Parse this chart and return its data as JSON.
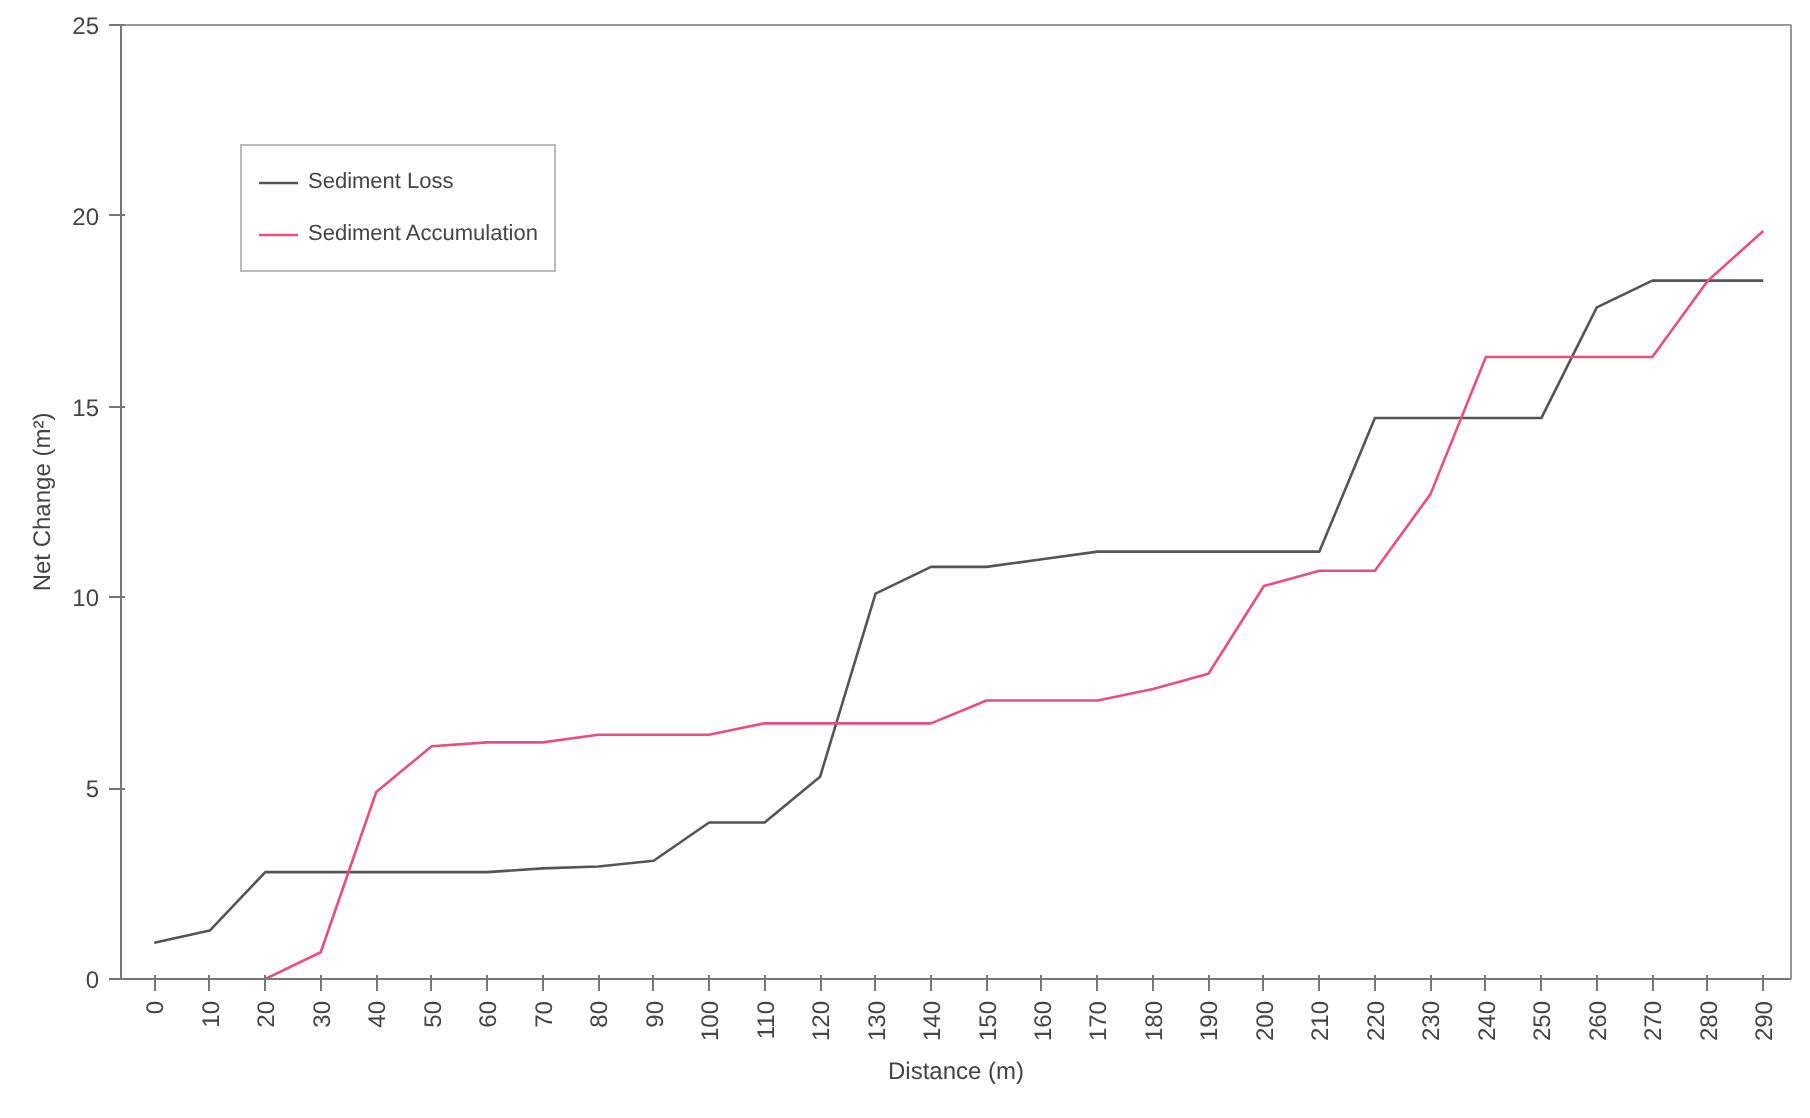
{
  "chart_data": {
    "type": "line",
    "xlabel": "Distance (m)",
    "ylabel": "Net Change (m²)",
    "categories": [
      "0",
      "10",
      "20",
      "30",
      "40",
      "50",
      "60",
      "70",
      "80",
      "90",
      "100",
      "110",
      "120",
      "130",
      "140",
      "150",
      "160",
      "170",
      "180",
      "190",
      "200",
      "210",
      "220",
      "230",
      "240",
      "250",
      "260",
      "270",
      "280",
      "290"
    ],
    "series": [
      {
        "name": "Sediment Loss",
        "color": "#555555",
        "values": [
          0.95,
          1.27,
          2.8,
          2.8,
          2.8,
          2.8,
          2.8,
          2.9,
          2.95,
          3.1,
          4.1,
          4.1,
          5.3,
          10.1,
          10.8,
          10.8,
          11.0,
          11.2,
          11.2,
          11.2,
          11.2,
          11.2,
          14.7,
          14.7,
          14.7,
          14.7,
          17.6,
          18.3,
          18.3,
          18.3
        ]
      },
      {
        "name": "Sediment Accumulation",
        "color": "#e8507a",
        "values": [
          null,
          null,
          0,
          0.7,
          4.9,
          6.1,
          6.2,
          6.2,
          6.4,
          6.4,
          6.4,
          6.7,
          6.7,
          6.7,
          6.7,
          7.3,
          7.3,
          7.3,
          7.6,
          8.0,
          10.3,
          10.7,
          10.7,
          12.7,
          16.3,
          16.3,
          16.3,
          16.3,
          18.3,
          19.6
        ]
      }
    ],
    "ylim": [
      0,
      25
    ],
    "yticks": [
      0,
      5,
      10,
      15,
      20,
      25
    ],
    "grid": false,
    "legend": "top left",
    "marker": "none",
    "line_style": "solid"
  }
}
